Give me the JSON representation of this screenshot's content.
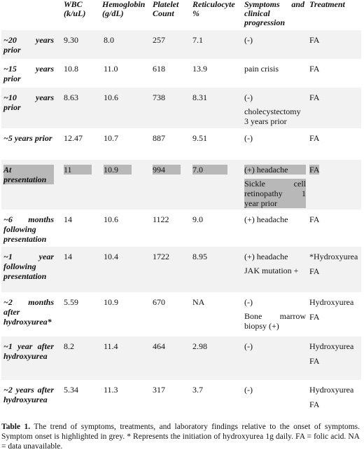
{
  "columns": {
    "timepoint": "",
    "wbc": [
      "WBC",
      "(k/uL)"
    ],
    "hgb": [
      "Hemoglobin",
      "(g/dL)"
    ],
    "plt": [
      "Platelet",
      "Count"
    ],
    "retic": [
      "Reticulocyte",
      "%"
    ],
    "symptoms": [
      "Symptoms and",
      "clinical",
      "progression"
    ],
    "treatment": [
      "Treatment"
    ]
  },
  "rows": [
    {
      "timepoint": [
        "~20 years",
        "prior"
      ],
      "wbc": "9.30",
      "hgb": "8.0",
      "plt": "257",
      "retic": "7.1",
      "symptoms": [
        "(-)"
      ],
      "treatment": [
        "FA"
      ]
    },
    {
      "timepoint": [
        "~15 years",
        "prior"
      ],
      "wbc": "10.8",
      "hgb": "11.0",
      "plt": "618",
      "retic": "13.9",
      "symptoms": [
        "pain crisis"
      ],
      "treatment": [
        "FA"
      ]
    },
    {
      "timepoint": [
        "~10 years",
        "prior"
      ],
      "wbc": "8.63",
      "hgb": "10.6",
      "plt": "738",
      "retic": "8.31",
      "symptoms": [
        "(-)",
        "cholecystectomy",
        "3 years prior"
      ],
      "treatment": [
        "FA"
      ]
    },
    {
      "timepoint": [
        "~5 years prior"
      ],
      "wbc": "12.47",
      "hgb": "10.7",
      "plt": "887",
      "retic": "9.51",
      "symptoms": [
        "(-)"
      ],
      "treatment": [
        "FA"
      ]
    },
    {
      "timepoint": [
        "At",
        "presentation"
      ],
      "wbc": "11",
      "hgb": "10.9",
      "plt": "994",
      "retic": "7.0",
      "symptoms": [
        "(+) headache",
        "Sickle cell",
        "retinopathy 1",
        "year prior"
      ],
      "treatment": [
        "FA"
      ],
      "highlight": true
    },
    {
      "timepoint": [
        "~6 months",
        "following",
        "presentation"
      ],
      "wbc": "14",
      "hgb": "10.6",
      "plt": "1122",
      "retic": "9.0",
      "symptoms": [
        "(+) headache"
      ],
      "treatment": [
        "FA"
      ]
    },
    {
      "timepoint": [
        "~1 year",
        "following",
        "presentation"
      ],
      "wbc": "14",
      "hgb": "10.4",
      "plt": "1722",
      "retic": "8.95",
      "symptoms": [
        "(+) headache",
        "JAK mutation +"
      ],
      "treatment": [
        "*Hydroxyurea",
        "FA"
      ]
    },
    {
      "timepoint": [
        "~2 months",
        "after",
        "hydroxyurea*"
      ],
      "wbc": "5.59",
      "hgb": "10.9",
      "plt": "670",
      "retic": "NA",
      "symptoms": [
        "(-)",
        "Bone marrow",
        "biopsy (+)"
      ],
      "treatment": [
        "Hydroxyurea",
        "FA"
      ]
    },
    {
      "timepoint": [
        "~1 year after",
        "hydroxyurea"
      ],
      "wbc": "8.2",
      "hgb": "11.4",
      "plt": "464",
      "retic": "2.98",
      "symptoms": [
        "(-)"
      ],
      "treatment": [
        "Hydroxyurea",
        "FA"
      ]
    },
    {
      "timepoint": [
        "~2 years after",
        "hydroxyurea"
      ],
      "wbc": "5.34",
      "hgb": "11.3",
      "plt": "317",
      "retic": "3.7",
      "symptoms": [
        "(-)"
      ],
      "treatment": [
        "Hydroxyurea",
        "FA"
      ]
    }
  ],
  "caption": {
    "label": "Table 1.",
    "text": "The trend of symptoms, treatments, and laboratory findings relative to the onset of symptoms. Symptom onset is highlighted in grey. * Represents the initiation of hydroxyurea 1g daily. FA = folic acid. NA = data unavailable."
  }
}
